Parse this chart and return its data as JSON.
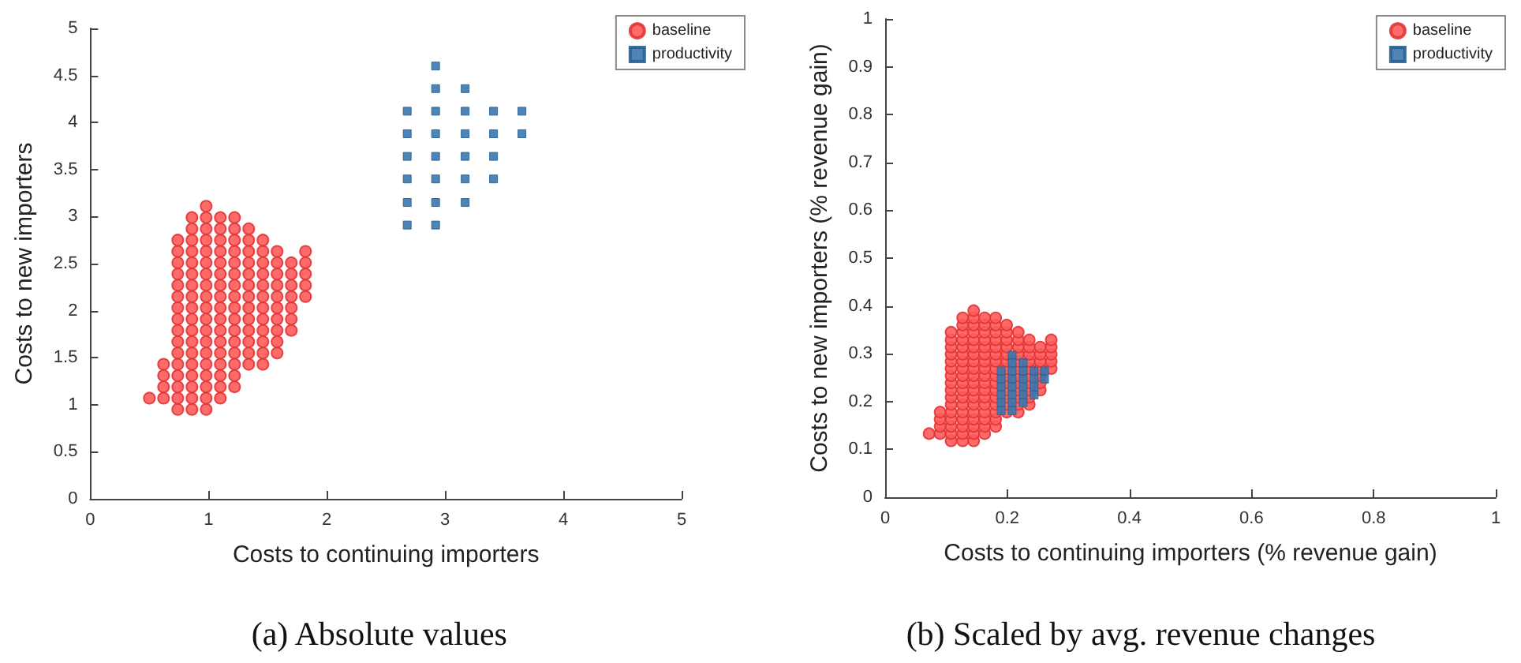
{
  "chart_data": [
    {
      "type": "scatter",
      "xlabel": "Costs to continuing importers",
      "ylabel": "Costs to new importers",
      "annotations": [
        "(a) Absolute values"
      ],
      "xlim": [
        0,
        5
      ],
      "ylim": [
        0,
        5
      ],
      "xticks": [
        0,
        1,
        2,
        3,
        4,
        5
      ],
      "yticks": [
        0,
        0.5,
        1,
        1.5,
        2,
        2.5,
        3,
        3.5,
        4,
        4.5,
        5
      ],
      "grid": false,
      "legend": "top right",
      "series": [
        {
          "name": "baseline",
          "color": "#ff5a5a",
          "marker": "circle",
          "x": [
            0.5,
            0.62,
            0.62,
            0.62,
            0.62,
            0.74,
            0.74,
            0.74,
            0.74,
            0.74,
            0.74,
            0.74,
            0.74,
            0.74,
            0.74,
            0.74,
            0.74,
            0.74,
            0.74,
            0.74,
            0.74,
            0.86,
            0.86,
            0.86,
            0.86,
            0.86,
            0.86,
            0.86,
            0.86,
            0.86,
            0.86,
            0.86,
            0.86,
            0.86,
            0.86,
            0.86,
            0.86,
            0.86,
            0.86,
            0.98,
            0.98,
            0.98,
            0.98,
            0.98,
            0.98,
            0.98,
            0.98,
            0.98,
            0.98,
            0.98,
            0.98,
            0.98,
            0.98,
            0.98,
            0.98,
            0.98,
            0.98,
            0.98,
            1.1,
            1.1,
            1.1,
            1.1,
            1.1,
            1.1,
            1.1,
            1.1,
            1.1,
            1.1,
            1.1,
            1.1,
            1.1,
            1.1,
            1.1,
            1.1,
            1.1,
            1.22,
            1.22,
            1.22,
            1.22,
            1.22,
            1.22,
            1.22,
            1.22,
            1.22,
            1.22,
            1.22,
            1.22,
            1.22,
            1.22,
            1.22,
            1.22,
            1.34,
            1.34,
            1.34,
            1.34,
            1.34,
            1.34,
            1.34,
            1.34,
            1.34,
            1.34,
            1.34,
            1.34,
            1.34,
            1.46,
            1.46,
            1.46,
            1.46,
            1.46,
            1.46,
            1.46,
            1.46,
            1.46,
            1.46,
            1.46,
            1.46,
            1.58,
            1.58,
            1.58,
            1.58,
            1.58,
            1.58,
            1.58,
            1.58,
            1.58,
            1.58,
            1.7,
            1.7,
            1.7,
            1.7,
            1.7,
            1.7,
            1.7,
            1.82,
            1.82,
            1.82,
            1.82,
            1.82
          ],
          "values": [
            1.07,
            1.07,
            1.19,
            1.31,
            1.43,
            0.95,
            1.07,
            1.19,
            1.31,
            1.43,
            1.55,
            1.67,
            1.79,
            1.91,
            2.03,
            2.15,
            2.27,
            2.39,
            2.51,
            2.63,
            2.75,
            0.95,
            1.07,
            1.19,
            1.31,
            1.43,
            1.55,
            1.67,
            1.79,
            1.91,
            2.03,
            2.15,
            2.27,
            2.39,
            2.51,
            2.63,
            2.75,
            2.87,
            2.99,
            0.95,
            1.07,
            1.19,
            1.31,
            1.43,
            1.55,
            1.67,
            1.79,
            1.91,
            2.03,
            2.15,
            2.27,
            2.39,
            2.51,
            2.63,
            2.75,
            2.87,
            2.99,
            3.11,
            1.07,
            1.19,
            1.31,
            1.43,
            1.55,
            1.67,
            1.79,
            1.91,
            2.03,
            2.15,
            2.27,
            2.39,
            2.51,
            2.63,
            2.75,
            2.87,
            2.99,
            1.19,
            1.31,
            1.43,
            1.55,
            1.67,
            1.79,
            1.91,
            2.03,
            2.15,
            2.27,
            2.39,
            2.51,
            2.63,
            2.75,
            2.87,
            2.99,
            1.43,
            1.55,
            1.67,
            1.79,
            1.91,
            2.03,
            2.15,
            2.27,
            2.39,
            2.51,
            2.63,
            2.75,
            2.87,
            1.43,
            1.55,
            1.67,
            1.79,
            1.91,
            2.03,
            2.15,
            2.27,
            2.39,
            2.51,
            2.63,
            2.75,
            1.55,
            1.67,
            1.79,
            1.91,
            2.03,
            2.15,
            2.27,
            2.39,
            2.51,
            2.63,
            1.79,
            1.91,
            2.03,
            2.15,
            2.27,
            2.39,
            2.51,
            2.15,
            2.27,
            2.39,
            2.51,
            2.63
          ]
        },
        {
          "name": "productivity",
          "color": "#3a78b0",
          "marker": "square",
          "x": [
            2.92,
            2.92,
            3.17,
            2.68,
            2.92,
            3.17,
            3.41,
            3.65,
            2.68,
            2.92,
            3.17,
            3.41,
            3.65,
            2.68,
            2.92,
            3.17,
            3.41,
            2.68,
            2.92,
            3.17,
            3.41,
            2.68,
            2.92,
            3.17,
            2.68,
            2.92
          ],
          "values": [
            4.6,
            4.36,
            4.36,
            4.12,
            4.12,
            4.12,
            4.12,
            4.12,
            3.88,
            3.88,
            3.88,
            3.88,
            3.88,
            3.64,
            3.64,
            3.64,
            3.64,
            3.4,
            3.4,
            3.4,
            3.4,
            3.15,
            3.15,
            3.15,
            2.91,
            2.91
          ]
        }
      ]
    },
    {
      "type": "scatter",
      "xlabel": "Costs to continuing importers (% revenue gain)",
      "ylabel": "Costs to new importers (% revenue gain)",
      "annotations": [
        "(b) Scaled by avg. revenue changes"
      ],
      "xlim": [
        0,
        1
      ],
      "ylim": [
        0,
        1
      ],
      "xticks": [
        0,
        0.2,
        0.4,
        0.6,
        0.8,
        1
      ],
      "yticks": [
        0,
        0.1,
        0.2,
        0.3,
        0.4,
        0.5,
        0.6,
        0.7,
        0.8,
        0.9,
        1
      ],
      "grid": false,
      "legend": "top right",
      "series": [
        {
          "name": "baseline",
          "color": "#ff5a5a",
          "marker": "circle",
          "x": [
            0.072,
            0.09,
            0.09,
            0.09,
            0.09,
            0.108,
            0.108,
            0.108,
            0.108,
            0.108,
            0.108,
            0.108,
            0.108,
            0.108,
            0.108,
            0.108,
            0.108,
            0.108,
            0.108,
            0.108,
            0.108,
            0.127,
            0.127,
            0.127,
            0.127,
            0.127,
            0.127,
            0.127,
            0.127,
            0.127,
            0.127,
            0.127,
            0.127,
            0.127,
            0.127,
            0.127,
            0.127,
            0.127,
            0.127,
            0.145,
            0.145,
            0.145,
            0.145,
            0.145,
            0.145,
            0.145,
            0.145,
            0.145,
            0.145,
            0.145,
            0.145,
            0.145,
            0.145,
            0.145,
            0.145,
            0.145,
            0.145,
            0.145,
            0.163,
            0.163,
            0.163,
            0.163,
            0.163,
            0.163,
            0.163,
            0.163,
            0.163,
            0.163,
            0.163,
            0.163,
            0.163,
            0.163,
            0.163,
            0.163,
            0.163,
            0.181,
            0.181,
            0.181,
            0.181,
            0.181,
            0.181,
            0.181,
            0.181,
            0.181,
            0.181,
            0.181,
            0.181,
            0.181,
            0.181,
            0.181,
            0.181,
            0.199,
            0.199,
            0.199,
            0.199,
            0.199,
            0.199,
            0.199,
            0.199,
            0.199,
            0.199,
            0.199,
            0.199,
            0.199,
            0.218,
            0.218,
            0.218,
            0.218,
            0.218,
            0.218,
            0.218,
            0.218,
            0.218,
            0.218,
            0.218,
            0.218,
            0.236,
            0.236,
            0.236,
            0.236,
            0.236,
            0.236,
            0.236,
            0.236,
            0.236,
            0.236,
            0.254,
            0.254,
            0.254,
            0.254,
            0.254,
            0.254,
            0.254,
            0.272,
            0.272,
            0.272,
            0.272,
            0.272
          ],
          "values": [
            0.133,
            0.133,
            0.148,
            0.163,
            0.178,
            0.118,
            0.133,
            0.148,
            0.163,
            0.178,
            0.194,
            0.209,
            0.224,
            0.239,
            0.254,
            0.269,
            0.284,
            0.299,
            0.314,
            0.329,
            0.345,
            0.118,
            0.133,
            0.148,
            0.163,
            0.178,
            0.194,
            0.209,
            0.224,
            0.239,
            0.254,
            0.269,
            0.284,
            0.299,
            0.314,
            0.329,
            0.345,
            0.36,
            0.375,
            0.118,
            0.133,
            0.148,
            0.163,
            0.178,
            0.194,
            0.209,
            0.224,
            0.239,
            0.254,
            0.269,
            0.284,
            0.299,
            0.314,
            0.329,
            0.345,
            0.36,
            0.375,
            0.39,
            0.133,
            0.148,
            0.163,
            0.178,
            0.194,
            0.209,
            0.224,
            0.239,
            0.254,
            0.269,
            0.284,
            0.299,
            0.314,
            0.329,
            0.345,
            0.36,
            0.375,
            0.148,
            0.163,
            0.178,
            0.194,
            0.209,
            0.224,
            0.239,
            0.254,
            0.269,
            0.284,
            0.299,
            0.314,
            0.329,
            0.345,
            0.36,
            0.375,
            0.178,
            0.194,
            0.209,
            0.224,
            0.239,
            0.254,
            0.269,
            0.284,
            0.299,
            0.314,
            0.329,
            0.345,
            0.36,
            0.178,
            0.194,
            0.209,
            0.224,
            0.239,
            0.254,
            0.269,
            0.284,
            0.299,
            0.314,
            0.329,
            0.345,
            0.194,
            0.209,
            0.224,
            0.239,
            0.254,
            0.269,
            0.284,
            0.299,
            0.314,
            0.329,
            0.224,
            0.239,
            0.254,
            0.269,
            0.284,
            0.299,
            0.314,
            0.269,
            0.284,
            0.299,
            0.314,
            0.329
          ]
        },
        {
          "name": "productivity",
          "color": "#3a78b0",
          "marker": "square",
          "x": [
            0.208,
            0.208,
            0.226,
            0.19,
            0.208,
            0.226,
            0.244,
            0.261,
            0.19,
            0.208,
            0.226,
            0.244,
            0.261,
            0.19,
            0.208,
            0.226,
            0.244,
            0.19,
            0.208,
            0.226,
            0.244,
            0.19,
            0.208,
            0.226,
            0.19,
            0.208
          ],
          "values": [
            0.297,
            0.281,
            0.281,
            0.264,
            0.264,
            0.264,
            0.264,
            0.264,
            0.247,
            0.247,
            0.247,
            0.247,
            0.247,
            0.231,
            0.231,
            0.231,
            0.231,
            0.214,
            0.214,
            0.214,
            0.214,
            0.198,
            0.198,
            0.198,
            0.181,
            0.181
          ]
        }
      ]
    }
  ]
}
